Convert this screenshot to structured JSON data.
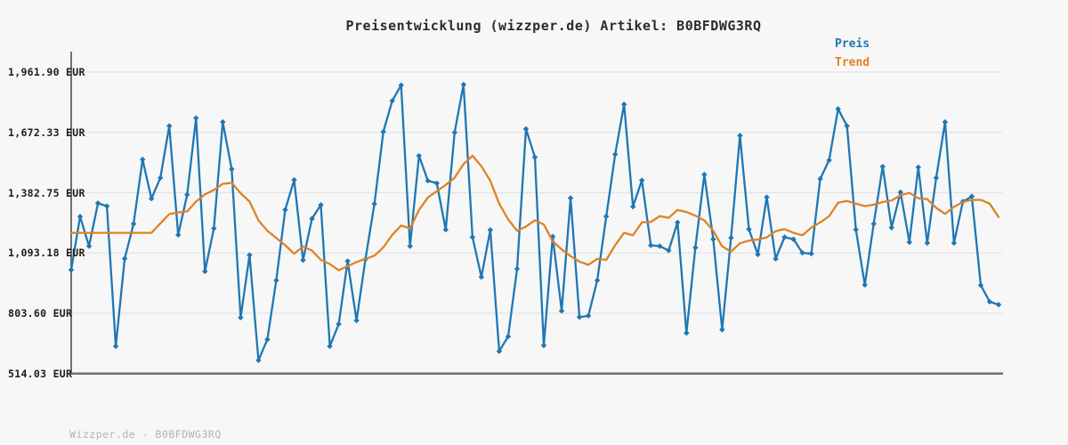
{
  "title": "Preisentwicklung (wizzper.de) Artikel: B0BFDWG3RQ",
  "footer": "Wizzper.de - B0BFDWG3RQ",
  "legend": {
    "position": "top-right",
    "items": [
      {
        "label": "Preis",
        "color": "#1f77b4"
      },
      {
        "label": "Trend",
        "color": "#dd8326"
      }
    ]
  },
  "y_axis": {
    "unit": "EUR",
    "ticks": [
      {
        "label": "1,961.90 EUR",
        "value": 1961.9
      },
      {
        "label": "1,672.33 EUR",
        "value": 1672.33
      },
      {
        "label": "1,382.75 EUR",
        "value": 1382.75
      },
      {
        "label": "1,093.18 EUR",
        "value": 1093.18
      },
      {
        "label": "803.60 EUR",
        "value": 803.6
      },
      {
        "label": "514.03 EUR",
        "value": 514.03
      }
    ]
  },
  "x_axis": {
    "tick_labels": []
  },
  "chart_data": {
    "type": "line",
    "title": "Preisentwicklung (wizzper.de) Artikel: B0BFDWG3RQ",
    "xlabel": "",
    "ylabel": "EUR",
    "ylim": [
      514.03,
      1961.9
    ],
    "grid": "horizontal-only",
    "legend_position": "top-right",
    "x_note": "105 equally spaced observations, no x tick labels shown",
    "series": [
      {
        "name": "Preis",
        "color": "#1f77b4",
        "marker": "diamond",
        "values": [
          1012,
          1268,
          1126,
          1332,
          1318,
          645,
          1066,
          1233,
          1542,
          1354,
          1454,
          1703,
          1180,
          1373,
          1741,
          1005,
          1211,
          1722,
          1496,
          783,
          1083,
          578,
          678,
          962,
          1301,
          1444,
          1059,
          1258,
          1324,
          645,
          752,
          1054,
          769,
          1063,
          1329,
          1675,
          1824,
          1899,
          1126,
          1560,
          1440,
          1428,
          1205,
          1672,
          1902,
          1169,
          978,
          1204,
          621,
          692,
          1017,
          1689,
          1553,
          649,
          1172,
          815,
          1357,
          785,
          792,
          962,
          1269,
          1567,
          1807,
          1316,
          1442,
          1130,
          1126,
          1105,
          1240,
          709,
          1119,
          1470,
          1159,
          725,
          1166,
          1657,
          1207,
          1086,
          1361,
          1065,
          1169,
          1159,
          1094,
          1090,
          1449,
          1539,
          1785,
          1703,
          1205,
          940,
          1233,
          1508,
          1215,
          1385,
          1145,
          1505,
          1141,
          1454,
          1722,
          1141,
          1340,
          1365,
          938,
          859,
          845
        ]
      },
      {
        "name": "Trend",
        "color": "#dd8326",
        "marker": "none",
        "values": [
          1190,
          1190,
          1190,
          1190,
          1190,
          1190,
          1190,
          1190,
          1190,
          1190,
          1235,
          1280,
          1288,
          1293,
          1340,
          1375,
          1395,
          1425,
          1430,
          1380,
          1340,
          1250,
          1200,
          1165,
          1130,
          1090,
          1124,
          1105,
          1060,
          1040,
          1010,
          1030,
          1050,
          1065,
          1080,
          1120,
          1180,
          1225,
          1211,
          1300,
          1360,
          1390,
          1420,
          1455,
          1520,
          1560,
          1510,
          1440,
          1330,
          1255,
          1200,
          1220,
          1250,
          1230,
          1150,
          1110,
          1078,
          1052,
          1036,
          1065,
          1060,
          1130,
          1190,
          1178,
          1240,
          1242,
          1270,
          1262,
          1300,
          1290,
          1272,
          1250,
          1200,
          1125,
          1100,
          1140,
          1153,
          1158,
          1168,
          1198,
          1208,
          1190,
          1178,
          1215,
          1240,
          1270,
          1335,
          1343,
          1330,
          1318,
          1325,
          1338,
          1345,
          1370,
          1382,
          1356,
          1352,
          1310,
          1281,
          1315,
          1338,
          1348,
          1348,
          1330,
          1266
        ]
      }
    ]
  }
}
